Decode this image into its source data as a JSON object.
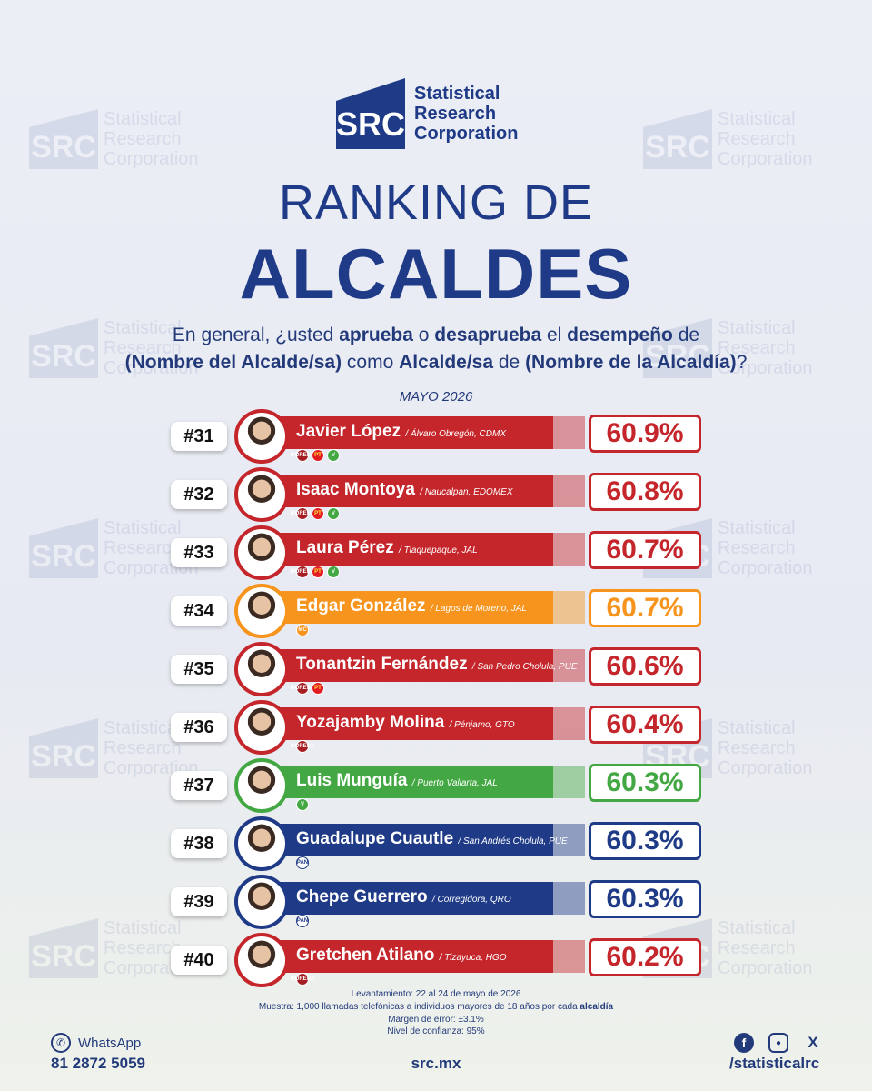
{
  "brand": {
    "logo_mark": "SRC",
    "line1": "Statistical",
    "line2": "Research",
    "line3": "Corporation",
    "accent": "#1f3b87"
  },
  "title": {
    "line1": "RANKING DE",
    "line2": "ALCALDES"
  },
  "question": {
    "parts": [
      "En general, ¿usted ",
      "aprueba",
      " o ",
      "desaprueba",
      " el ",
      "desempeño",
      " de ",
      "(Nombre del Alcalde/sa)",
      " como ",
      "Alcalde/sa",
      " de ",
      "(Nombre de la Alcaldía)",
      "?"
    ]
  },
  "month": "MAYO 2026",
  "ranking": [
    {
      "rank": "#31",
      "name": "Javier López",
      "location": "/ Álvaro Obregón, CDMX",
      "pct": "60.9%",
      "color": "#c4262b",
      "parties": [
        "morena",
        "pt",
        "pvem"
      ]
    },
    {
      "rank": "#32",
      "name": "Isaac Montoya",
      "location": "/ Naucalpan, EDOMEX",
      "pct": "60.8%",
      "color": "#c4262b",
      "parties": [
        "morena",
        "pt",
        "pvem"
      ]
    },
    {
      "rank": "#33",
      "name": "Laura Pérez",
      "location": "/ Tlaquepaque, JAL",
      "pct": "60.7%",
      "color": "#c4262b",
      "parties": [
        "morena",
        "pt",
        "pvem"
      ]
    },
    {
      "rank": "#34",
      "name": "Edgar González",
      "location": "/ Lagos de Moreno, JAL",
      "pct": "60.7%",
      "color": "#f7941d",
      "parties": [
        "mc"
      ]
    },
    {
      "rank": "#35",
      "name": "Tonantzin Fernández",
      "location": "/ San Pedro Cholula, PUE",
      "pct": "60.6%",
      "color": "#c4262b",
      "parties": [
        "morena",
        "pt"
      ]
    },
    {
      "rank": "#36",
      "name": "Yozajamby Molina",
      "location": "/ Pénjamo, GTO",
      "pct": "60.4%",
      "color": "#c4262b",
      "parties": [
        "morena"
      ]
    },
    {
      "rank": "#37",
      "name": "Luis Munguía",
      "location": "/ Puerto Vallarta, JAL",
      "pct": "60.3%",
      "color": "#43a843",
      "parties": [
        "pvem"
      ]
    },
    {
      "rank": "#38",
      "name": "Guadalupe Cuautle",
      "location": "/ San Andrés Cholula, PUE",
      "pct": "60.3%",
      "color": "#1f3b87",
      "parties": [
        "pan"
      ]
    },
    {
      "rank": "#39",
      "name": "Chepe Guerrero",
      "location": "/ Corregidora, QRO",
      "pct": "60.3%",
      "color": "#1f3b87",
      "parties": [
        "pan"
      ]
    },
    {
      "rank": "#40",
      "name": "Gretchen Atilano",
      "location": "/ Tizayuca, HGO",
      "pct": "60.2%",
      "color": "#c4262b",
      "parties": [
        "morena"
      ]
    }
  ],
  "party_labels": {
    "morena": "MORENA",
    "pt": "PT",
    "pvem": "V",
    "mc": "MC",
    "pan": "PAN"
  },
  "footer": {
    "survey": "Levantamiento: 22 al 24 de mayo de 2026",
    "sample_a": "Muestra: 1,000 llamadas telefónicas a individuos mayores de 18 años por cada ",
    "sample_b": "alcaldía",
    "margin": "Margen de error: ±3.1%",
    "confidence": "Nivel de confianza: 95%"
  },
  "contact": {
    "whatsapp_label": "WhatsApp",
    "phone": "81 2872 5059",
    "site": "src.mx",
    "handle": "/statisticalrc",
    "whatsapp_icon": "whatsapp-icon",
    "social_icons": [
      "facebook-icon",
      "instagram-icon",
      "x-icon"
    ]
  }
}
